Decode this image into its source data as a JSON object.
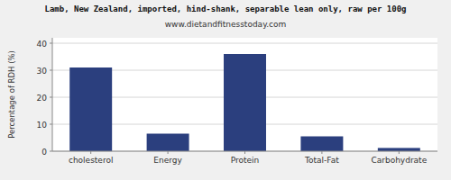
{
  "chart_data": {
    "type": "bar",
    "title": "Lamb, New Zealand, imported, hind-shank, separable lean only, raw per 100g",
    "subtitle": "www.dietandfitnesstoday.com",
    "categories": [
      "cholesterol",
      "Energy",
      "Protein",
      "Total-Fat",
      "Carbohydrate"
    ],
    "values": [
      31.0,
      6.5,
      36.0,
      5.5,
      1.2
    ],
    "color": "#2b3f7e",
    "ylabel": "Percentage of RDH (%)",
    "ylim": [
      0,
      42
    ],
    "yticks": [
      0,
      10,
      20,
      30,
      40
    ],
    "grid": true
  }
}
